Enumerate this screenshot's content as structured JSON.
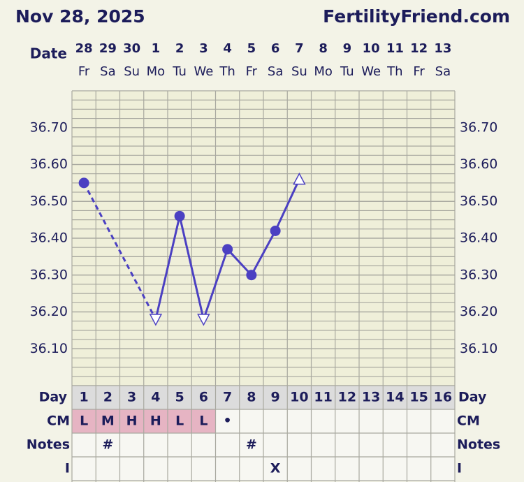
{
  "chart_data": {
    "type": "line",
    "title": "Nov 28, 2025",
    "site": "FertilityFriend.com",
    "date_label": "Date",
    "dates": [
      28,
      29,
      30,
      1,
      2,
      3,
      4,
      5,
      6,
      7,
      8,
      9,
      10,
      11,
      12,
      13
    ],
    "weekdays": [
      "Fr",
      "Sa",
      "Su",
      "Mo",
      "Tu",
      "We",
      "Th",
      "Fr",
      "Sa",
      "Su",
      "Mo",
      "Tu",
      "We",
      "Th",
      "Fr",
      "Sa"
    ],
    "ylim": [
      36.0,
      36.8
    ],
    "yticks": [
      {
        "value": 36.1,
        "label": "36.10"
      },
      {
        "value": 36.2,
        "label": "36.20"
      },
      {
        "value": 36.3,
        "label": "36.30"
      },
      {
        "value": 36.4,
        "label": "36.40"
      },
      {
        "value": 36.5,
        "label": "36.50"
      },
      {
        "value": 36.6,
        "label": "36.60"
      },
      {
        "value": 36.7,
        "label": "36.70"
      }
    ],
    "grid": true,
    "series": [
      {
        "color": "#4b40c2",
        "values": [
          36.55,
          null,
          null,
          36.18,
          36.46,
          36.18,
          36.37,
          36.3,
          36.42,
          36.56,
          null,
          null,
          null,
          null,
          null,
          null
        ],
        "markers": [
          "circle",
          null,
          null,
          "triangle-down",
          "circle",
          "triangle-down",
          "circle",
          "circle",
          "circle",
          "triangle-up",
          null,
          null,
          null,
          null,
          null,
          null
        ]
      }
    ],
    "day_label": "Day",
    "days": [
      1,
      2,
      3,
      4,
      5,
      6,
      7,
      8,
      9,
      10,
      11,
      12,
      13,
      14,
      15,
      16
    ],
    "rows": [
      {
        "label": "CM",
        "values": [
          "L",
          "M",
          "H",
          "H",
          "L",
          "L",
          "•",
          null,
          null,
          null,
          null,
          null,
          null,
          null,
          null,
          null
        ],
        "colors": [
          "#e6b4c3",
          "#e6b4c3",
          "#e6b4c3",
          "#e6b4c3",
          "#e6b4c3",
          "#e6b4c3",
          null,
          null,
          null,
          null,
          null,
          null,
          null,
          null,
          null,
          null
        ]
      },
      {
        "label": "Notes",
        "values": [
          null,
          "#",
          null,
          null,
          null,
          null,
          null,
          "#",
          null,
          null,
          null,
          null,
          null,
          null,
          null,
          null
        ]
      },
      {
        "label": "I",
        "values": [
          null,
          null,
          null,
          null,
          null,
          null,
          null,
          null,
          "X",
          null,
          null,
          null,
          null,
          null,
          null,
          null
        ]
      }
    ]
  }
}
